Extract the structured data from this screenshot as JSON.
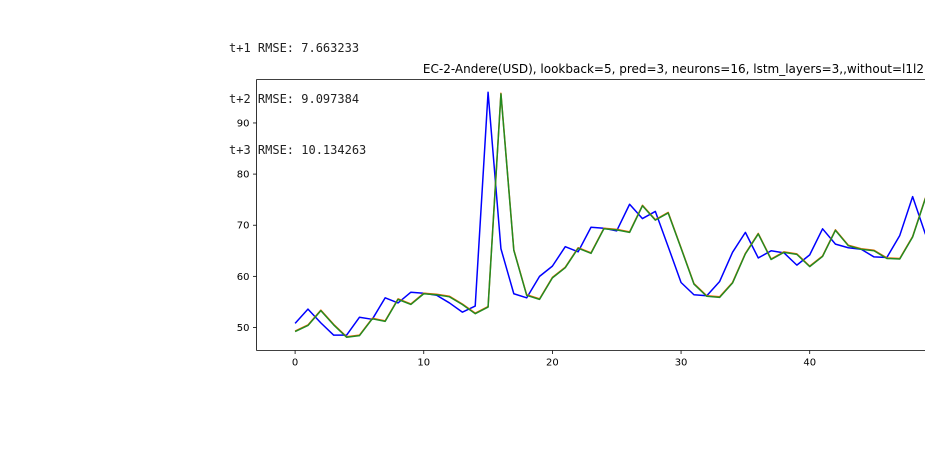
{
  "output_lines": [
    "t+1 RMSE: 7.663233",
    "t+2 RMSE: 9.097384",
    "t+3 RMSE: 10.134263"
  ],
  "chart_data": {
    "type": "line",
    "title": "EC-2-Andere(USD), lookback=5, pred=3, neurons=16, lstm_layers=3,,without=l1l2",
    "xlabel": "",
    "ylabel": "",
    "xlim": [
      -3,
      49
    ],
    "ylim": [
      45.5,
      98.5
    ],
    "xticks": [
      0,
      10,
      20,
      30,
      40
    ],
    "yticks": [
      50,
      60,
      70,
      80,
      90
    ],
    "grid": false,
    "legend": "none",
    "series": [
      {
        "color": "#0000ff",
        "x": [
          0,
          1,
          2,
          3,
          4,
          5,
          6,
          7,
          8,
          9,
          10,
          11,
          12,
          13,
          14,
          15,
          16,
          17,
          18,
          19,
          20,
          21,
          22,
          23,
          24,
          25,
          26,
          27,
          28,
          29,
          30,
          31,
          32,
          33,
          34,
          35,
          36,
          37,
          38,
          39,
          40,
          41,
          42,
          43,
          44,
          45,
          46,
          47,
          48,
          49
        ],
        "values": [
          50.8,
          53.6,
          50.9,
          48.5,
          48.5,
          52.0,
          51.6,
          55.8,
          54.8,
          56.9,
          56.7,
          56.3,
          54.8,
          53.0,
          54.2,
          96.0,
          65.4,
          56.6,
          55.8,
          60.0,
          62.0,
          65.8,
          64.8,
          69.6,
          69.4,
          68.9,
          74.1,
          71.3,
          72.7,
          65.8,
          58.8,
          56.4,
          56.2,
          59.0,
          64.7,
          68.6,
          63.6,
          65.0,
          64.6,
          62.2,
          64.2,
          69.3,
          66.3,
          65.6,
          65.3,
          63.8,
          63.7,
          68.0,
          75.6,
          68.2
        ]
      },
      {
        "color": "#ff6600",
        "x": [
          0,
          1,
          2,
          3,
          4,
          5,
          6,
          7,
          8,
          9,
          10,
          11,
          12,
          13,
          14,
          15,
          16,
          17,
          18,
          19,
          20,
          21,
          22,
          23,
          24,
          25,
          26,
          27,
          28,
          29,
          30,
          31,
          32,
          33,
          34,
          35,
          36,
          37,
          38,
          39,
          40,
          41,
          42,
          43,
          44,
          45,
          46,
          47,
          48,
          49
        ],
        "values": [
          49.3,
          50.5,
          53.4,
          50.6,
          48.2,
          48.5,
          51.8,
          51.3,
          55.6,
          54.6,
          56.7,
          56.5,
          56.1,
          54.6,
          52.8,
          54.1,
          95.8,
          65.2,
          56.4,
          55.6,
          59.8,
          61.8,
          65.6,
          64.6,
          69.4,
          69.2,
          68.7,
          73.9,
          71.1,
          72.5,
          65.6,
          58.6,
          56.2,
          56.0,
          58.8,
          64.5,
          68.4,
          63.4,
          64.8,
          64.4,
          62.0,
          64.0,
          69.1,
          66.1,
          65.4,
          65.1,
          63.6,
          63.5,
          67.8,
          75.4
        ]
      },
      {
        "color": "#228b22",
        "x": [
          0,
          1,
          2,
          3,
          4,
          5,
          6,
          7,
          8,
          9,
          10,
          11,
          12,
          13,
          14,
          15,
          16,
          17,
          18,
          19,
          20,
          21,
          22,
          23,
          24,
          25,
          26,
          27,
          28,
          29,
          30,
          31,
          32,
          33,
          34,
          35,
          36,
          37,
          38,
          39,
          40,
          41,
          42,
          43,
          44,
          45,
          46,
          47,
          48,
          49
        ],
        "values": [
          49.2,
          50.4,
          53.3,
          50.5,
          48.1,
          48.4,
          51.7,
          51.2,
          55.5,
          54.5,
          56.6,
          56.4,
          56.0,
          54.5,
          52.7,
          54.0,
          95.7,
          65.1,
          56.3,
          55.5,
          59.7,
          61.7,
          65.5,
          64.5,
          69.3,
          69.1,
          68.6,
          73.8,
          71.0,
          72.4,
          65.5,
          58.5,
          56.1,
          55.9,
          58.7,
          64.4,
          68.3,
          63.3,
          64.7,
          64.3,
          61.9,
          63.9,
          69.0,
          66.0,
          65.3,
          65.0,
          63.5,
          63.4,
          67.7,
          75.3
        ]
      }
    ]
  }
}
